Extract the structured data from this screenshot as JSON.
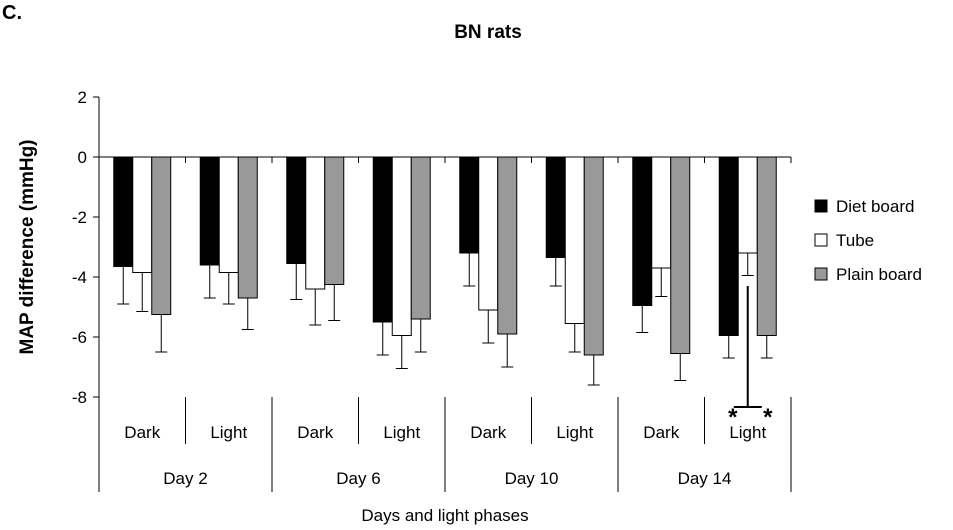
{
  "panel_label": "C.",
  "chart_data": {
    "type": "bar",
    "title": "BN rats",
    "xlabel": "Days and light phases",
    "ylabel": "MAP difference (mmHg)",
    "ylim": [
      -8,
      2
    ],
    "yticks": [
      2,
      0,
      -2,
      -4,
      -6,
      -8
    ],
    "groups": [
      {
        "label": "Day 2",
        "phases": [
          "Dark",
          "Light"
        ]
      },
      {
        "label": "Day 6",
        "phases": [
          "Dark",
          "Light"
        ]
      },
      {
        "label": "Day 10",
        "phases": [
          "Dark",
          "Light"
        ]
      },
      {
        "label": "Day 14",
        "phases": [
          "Dark",
          "Light"
        ]
      }
    ],
    "categories": [
      "Day 2 Dark",
      "Day 2 Light",
      "Day 6 Dark",
      "Day 6 Light",
      "Day 10 Dark",
      "Day 10 Light",
      "Day 14 Dark",
      "Day 14 Light"
    ],
    "series": [
      {
        "name": "Diet board",
        "color": "#000000",
        "values": [
          -3.65,
          -3.6,
          -3.55,
          -5.5,
          -3.2,
          -3.35,
          -4.95,
          -5.95
        ],
        "errors": [
          1.25,
          1.1,
          1.2,
          1.1,
          1.1,
          0.95,
          0.9,
          0.75
        ]
      },
      {
        "name": "Tube",
        "color": "#ffffff",
        "values": [
          -3.85,
          -3.85,
          -4.4,
          -5.95,
          -5.1,
          -5.55,
          -3.7,
          -3.2
        ],
        "errors": [
          1.3,
          1.05,
          1.2,
          1.1,
          1.1,
          0.95,
          0.95,
          0.75
        ]
      },
      {
        "name": "Plain board",
        "color": "#999999",
        "values": [
          -5.25,
          -4.7,
          -4.25,
          -5.4,
          -5.9,
          -6.6,
          -6.55,
          -5.95
        ],
        "errors": [
          1.25,
          1.05,
          1.2,
          1.1,
          1.1,
          1.0,
          0.9,
          0.75
        ]
      }
    ],
    "annotation": {
      "category": "Day 14 Light",
      "text": "*",
      "count": 2,
      "from": -4.3,
      "to": -8.6
    },
    "legend_position": "right",
    "grid": false
  }
}
